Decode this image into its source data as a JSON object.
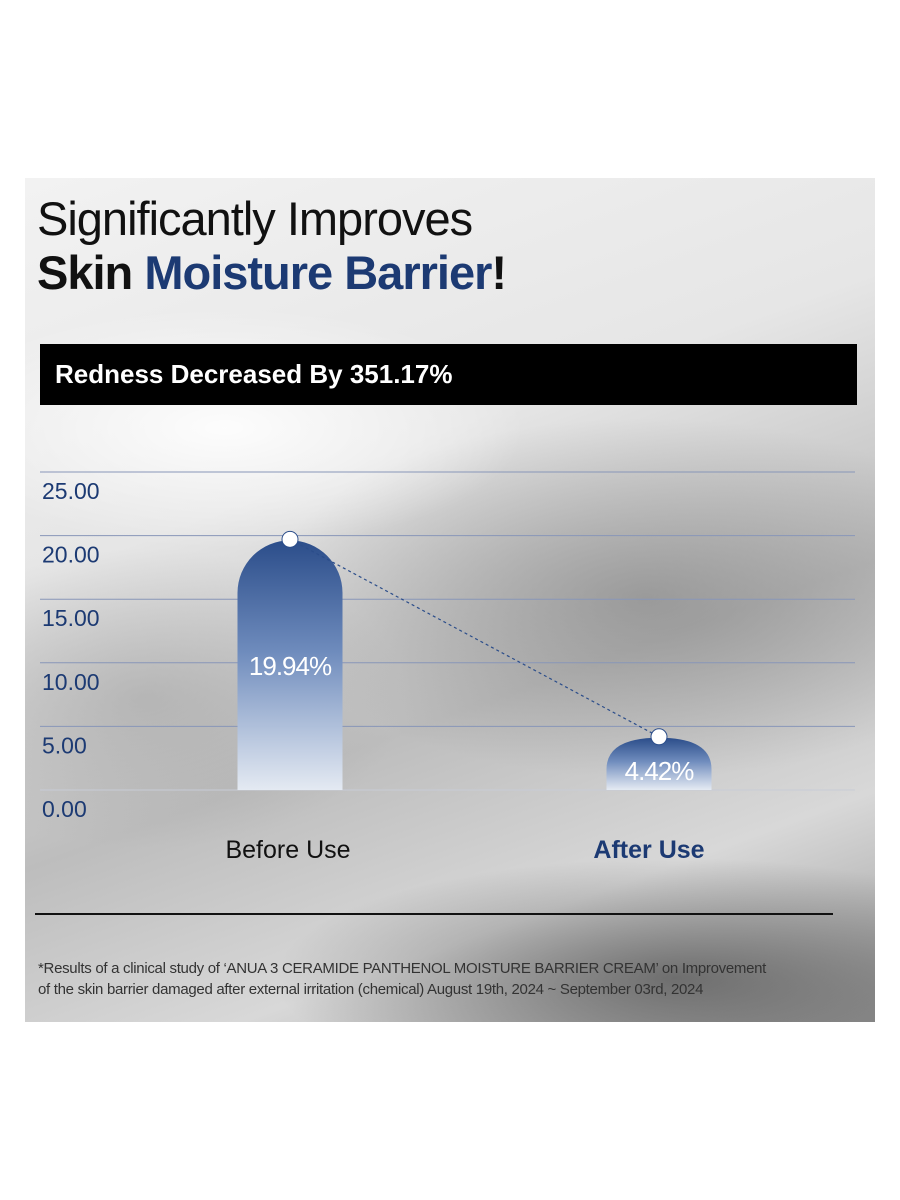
{
  "headline": {
    "line1": "Significantly Improves",
    "line2_pre": "Skin ",
    "line2_accent": "Moisture Barrier",
    "line2_post": "!"
  },
  "banner": "Redness Decreased By 351.17%",
  "colors": {
    "accent": "#1c3a73",
    "bar_top": "#2b4d8a",
    "bar_bottom": "#e6ecf5",
    "grid": "#8896b8"
  },
  "chart_data": {
    "type": "bar",
    "categories": [
      "Before Use",
      "After Use"
    ],
    "values": [
      19.94,
      4.42
    ],
    "data_labels": [
      "19.94%",
      "4.42%"
    ],
    "ylim": [
      0,
      25
    ],
    "yticks": [
      "0.00",
      "5.00",
      "10.00",
      "15.00",
      "20.00",
      "25.00"
    ],
    "grid": true,
    "connector": "dashed line between bar tops"
  },
  "footnote": {
    "line1": "*Results of a clinical study of ‘ANUA 3 CERAMIDE PANTHENOL MOISTURE BARRIER CREAM’ on Improvement",
    "line2": "of the skin barrier damaged after external irritation (chemical) August 19th, 2024 ~ September 03rd, 2024"
  }
}
